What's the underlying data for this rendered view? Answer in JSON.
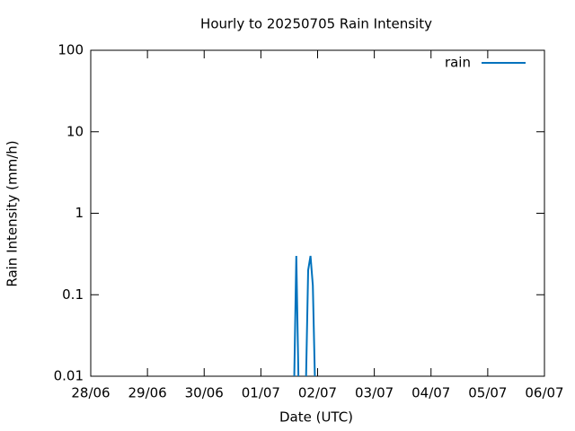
{
  "chart_data": {
    "type": "line",
    "title": "Hourly to 20250705 Rain Intensity",
    "x_label": "Date (UTC)",
    "y_label": "Rain Intensity (mm/h)",
    "x": [
      "01/07 14:00",
      "01/07 15:00",
      "01/07 16:00",
      "01/07 19:00",
      "01/07 20:00",
      "01/07 21:00",
      "01/07 22:00",
      "01/07 23:00"
    ],
    "series": [
      {
        "name": "rain",
        "color": "#0072bd",
        "values": [
          0,
          0.3,
          0,
          0,
          0.2,
          0.3,
          0.13,
          0
        ]
      }
    ],
    "xlim": [
      "28/06",
      "06/07"
    ],
    "xticks": [
      "28/06",
      "29/06",
      "30/06",
      "01/07",
      "02/07",
      "03/07",
      "04/07",
      "05/07",
      "06/07"
    ],
    "ylim": [
      0.01,
      100
    ],
    "yticks": [
      0.01,
      0.1,
      1,
      10,
      100
    ],
    "log_y": true,
    "legend": "top-right"
  }
}
